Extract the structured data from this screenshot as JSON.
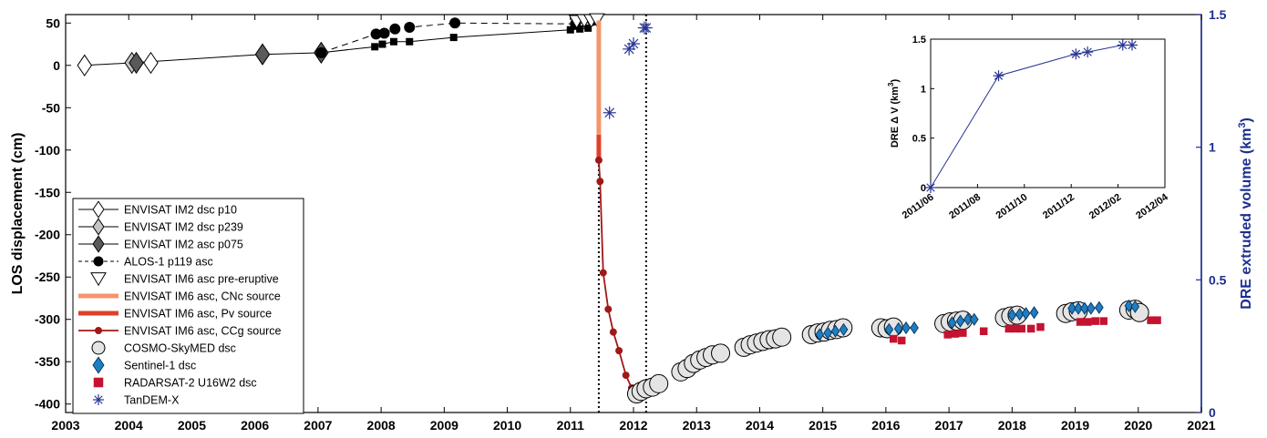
{
  "chart_data": [
    {
      "type": "scatter",
      "xlabel": "",
      "ylabel": "LOS displacement (cm)",
      "y2label": "DRE extruded volume (km",
      "y2label_sup": "3",
      "y2label_tail": ")",
      "xlim": [
        2003,
        2021
      ],
      "ylim": [
        -410,
        60
      ],
      "y2lim": [
        0,
        1.5
      ],
      "xticks": [
        "2003",
        "2004",
        "2005",
        "2006",
        "2007",
        "2008",
        "2009",
        "2010",
        "2011",
        "2012",
        "2013",
        "2014",
        "2015",
        "2016",
        "2017",
        "2018",
        "2019",
        "2020",
        "2021"
      ],
      "yticks": [
        "50",
        "0",
        "-50",
        "-100",
        "-150",
        "-200",
        "-250",
        "-300",
        "-350",
        "-400"
      ],
      "y2ticks": [
        "0",
        "0.5",
        "1",
        "1.5"
      ],
      "vlines": [
        2011.45,
        2012.2
      ],
      "legend_position": "lower-left",
      "series": [
        {
          "name": "ENVISAT IM2 dsc p10",
          "marker": "diamond",
          "line": "solid",
          "color": "#ffffff",
          "x": [
            2003.3,
            2004.35
          ],
          "y": [
            0,
            3
          ]
        },
        {
          "name": "ENVISAT IM2 dsc p239",
          "marker": "diamond",
          "line": "solid",
          "color": "#c4c4c4",
          "x": [
            2004.05
          ],
          "y": [
            3
          ]
        },
        {
          "name": "ENVISAT IM2 asc p075",
          "marker": "diamond",
          "line": "solid",
          "color": "#5a5a5a",
          "x": [
            2004.12,
            2006.12,
            2007.05
          ],
          "y": [
            3,
            13,
            15
          ]
        },
        {
          "name": "ALOS-1 p119 asc",
          "marker": "circle",
          "line": "dashed",
          "color": "#000000",
          "x": [
            2007.05,
            2007.92,
            2008.05,
            2008.22,
            2008.45,
            2009.17,
            2011.08,
            2011.35
          ],
          "y": [
            15,
            37,
            38,
            43,
            45,
            50,
            49,
            53
          ]
        },
        {
          "name": "ENVISAT IM6 asc pre-eruptive",
          "marker": "triangle-down",
          "line": "none",
          "color": "#ffffff",
          "x": [
            2011.1,
            2011.22,
            2011.33,
            2011.42
          ],
          "y": [
            52,
            53,
            53,
            54
          ]
        },
        {
          "name": "ENVISAT IM6 asc, CNc source",
          "marker": "none",
          "line": "thick",
          "color": "#f4956b",
          "x": [
            2011.45,
            2011.45
          ],
          "y": [
            53,
            -82
          ]
        },
        {
          "name": "ENVISAT IM6 asc, Pv source",
          "marker": "none",
          "line": "thick",
          "color": "#e04028",
          "x": [
            2011.45,
            2011.45
          ],
          "y": [
            -82,
            -112
          ]
        },
        {
          "name": "ENVISAT IM6 asc, CCg source",
          "marker": "dot",
          "line": "solid",
          "color": "#a01818",
          "x": [
            2011.45,
            2011.47,
            2011.52,
            2011.6,
            2011.68,
            2011.77,
            2011.88,
            2011.97
          ],
          "y": [
            -112,
            -137,
            -245,
            -288,
            -315,
            -337,
            -366,
            -381
          ]
        },
        {
          "name": "COSMO-SkyMED dsc",
          "marker": "circle",
          "line": "none",
          "color": "#e4e4e4",
          "x": [
            2012.05,
            2012.12,
            2012.2,
            2012.3,
            2012.4,
            2012.75,
            2012.85,
            2012.95,
            2013.05,
            2013.15,
            2013.25,
            2013.38,
            2013.75,
            2013.85,
            2013.95,
            2014.05,
            2014.15,
            2014.25,
            2014.35,
            2014.82,
            2014.92,
            2015.02,
            2015.12,
            2015.22,
            2015.32,
            2015.92,
            2016.02,
            2016.12,
            2016.92,
            2017.02,
            2017.12,
            2017.22,
            2017.88,
            2017.98,
            2018.08,
            2018.85,
            2018.95,
            2019.05,
            2019.85,
            2019.95,
            2020.02
          ],
          "y": [
            -388,
            -385,
            -382,
            -380,
            -376,
            -362,
            -358,
            -352,
            -348,
            -345,
            -342,
            -340,
            -333,
            -330,
            -328,
            -326,
            -324,
            -323,
            -321,
            -318,
            -316,
            -315,
            -313,
            -312,
            -310,
            -310,
            -311,
            -309,
            -305,
            -303,
            -302,
            -301,
            -298,
            -296,
            -295,
            -293,
            -291,
            -290,
            -289,
            -288,
            -292
          ]
        },
        {
          "name": "Sentinel-1 dsc",
          "marker": "diamond",
          "line": "none",
          "color": "#1f7ec2",
          "x": [
            2014.95,
            2015.08,
            2015.2,
            2015.33,
            2016.05,
            2016.2,
            2016.32,
            2016.45,
            2017.05,
            2017.18,
            2017.3,
            2017.4,
            2018.0,
            2018.12,
            2018.22,
            2018.35,
            2018.95,
            2019.05,
            2019.15,
            2019.25,
            2019.38,
            2019.85,
            2019.95
          ],
          "y": [
            -318,
            -316,
            -314,
            -312,
            -312,
            -311,
            -310,
            -310,
            -304,
            -302,
            -300,
            -300,
            -295,
            -294,
            -293,
            -292,
            -287,
            -287,
            -287,
            -287,
            -286,
            -284,
            -285
          ]
        },
        {
          "name": "RADARSAT-2 U16W2 dsc",
          "marker": "square",
          "line": "none",
          "color": "#c41230",
          "x": [
            2016.12,
            2016.25,
            2016.98,
            2017.1,
            2017.22,
            2017.55,
            2017.95,
            2018.05,
            2018.15,
            2018.3,
            2018.45,
            2019.08,
            2019.2,
            2019.32,
            2019.45,
            2020.2,
            2020.3
          ],
          "y": [
            -323,
            -325,
            -318,
            -317,
            -316,
            -314,
            -311,
            -311,
            -311,
            -311,
            -309,
            -303,
            -303,
            -302,
            -302,
            -301,
            -301
          ]
        },
        {
          "name": "TanDEM-X",
          "marker": "asterisk",
          "line": "none",
          "color": "#283593",
          "axis": "right",
          "x": [
            2011.62,
            2011.93,
            2012.0,
            2012.17,
            2012.2
          ],
          "y": [
            1.13,
            1.37,
            1.39,
            1.45,
            1.45
          ]
        }
      ]
    },
    {
      "type": "line",
      "inset": true,
      "xlabel": "",
      "ylabel": "DRE Δ V (km",
      "ylabel_sup": "3",
      "ylabel_tail": ")",
      "ylim": [
        0,
        1.5
      ],
      "yticks": [
        "0",
        "0.5",
        "1",
        "1.5"
      ],
      "xticks": [
        "2011/06",
        "2011/08",
        "2011/10",
        "2011/12",
        "2012/02",
        "2012/04"
      ],
      "x_months": [
        0,
        2.9,
        6.2,
        6.7,
        8.2,
        8.6
      ],
      "y": [
        0,
        1.13,
        1.35,
        1.37,
        1.44,
        1.44
      ],
      "color": "#283593",
      "marker": "asterisk"
    }
  ]
}
